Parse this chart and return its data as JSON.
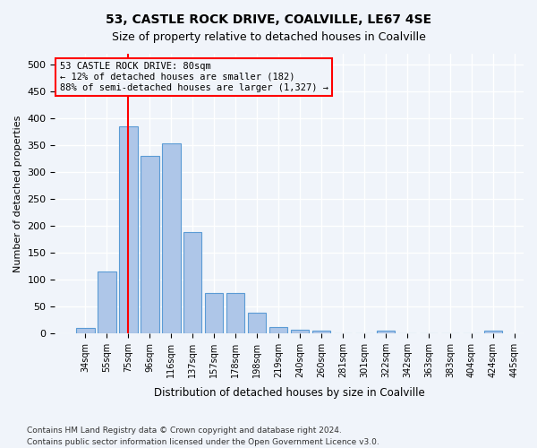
{
  "title1": "53, CASTLE ROCK DRIVE, COALVILLE, LE67 4SE",
  "title2": "Size of property relative to detached houses in Coalville",
  "xlabel": "Distribution of detached houses by size in Coalville",
  "ylabel": "Number of detached properties",
  "footnote1": "Contains HM Land Registry data © Crown copyright and database right 2024.",
  "footnote2": "Contains public sector information licensed under the Open Government Licence v3.0.",
  "annotation_line1": "53 CASTLE ROCK DRIVE: 80sqm",
  "annotation_line2": "← 12% of detached houses are smaller (182)",
  "annotation_line3": "88% of semi-detached houses are larger (1,327) →",
  "bar_values": [
    10,
    115,
    385,
    330,
    353,
    188,
    75,
    75,
    38,
    11,
    7,
    4,
    0,
    0,
    5,
    0,
    0,
    0,
    0,
    5
  ],
  "bar_labels": [
    "34sqm",
    "55sqm",
    "75sqm",
    "96sqm",
    "116sqm",
    "137sqm",
    "157sqm",
    "178sqm",
    "198sqm",
    "219sqm",
    "240sqm",
    "260sqm",
    "281sqm",
    "301sqm",
    "322sqm",
    "342sqm",
    "363sqm",
    "383sqm",
    "404sqm",
    "424sqm",
    "445sqm"
  ],
  "bar_color": "#AEC6E8",
  "bar_edge_color": "#5B9BD5",
  "red_line_x": 2,
  "ylim": [
    0,
    520
  ],
  "yticks": [
    0,
    50,
    100,
    150,
    200,
    250,
    300,
    350,
    400,
    450,
    500
  ],
  "bg_color": "#F0F4FA",
  "grid_color": "#FFFFFF",
  "annotation_box_color": "#FF0000"
}
